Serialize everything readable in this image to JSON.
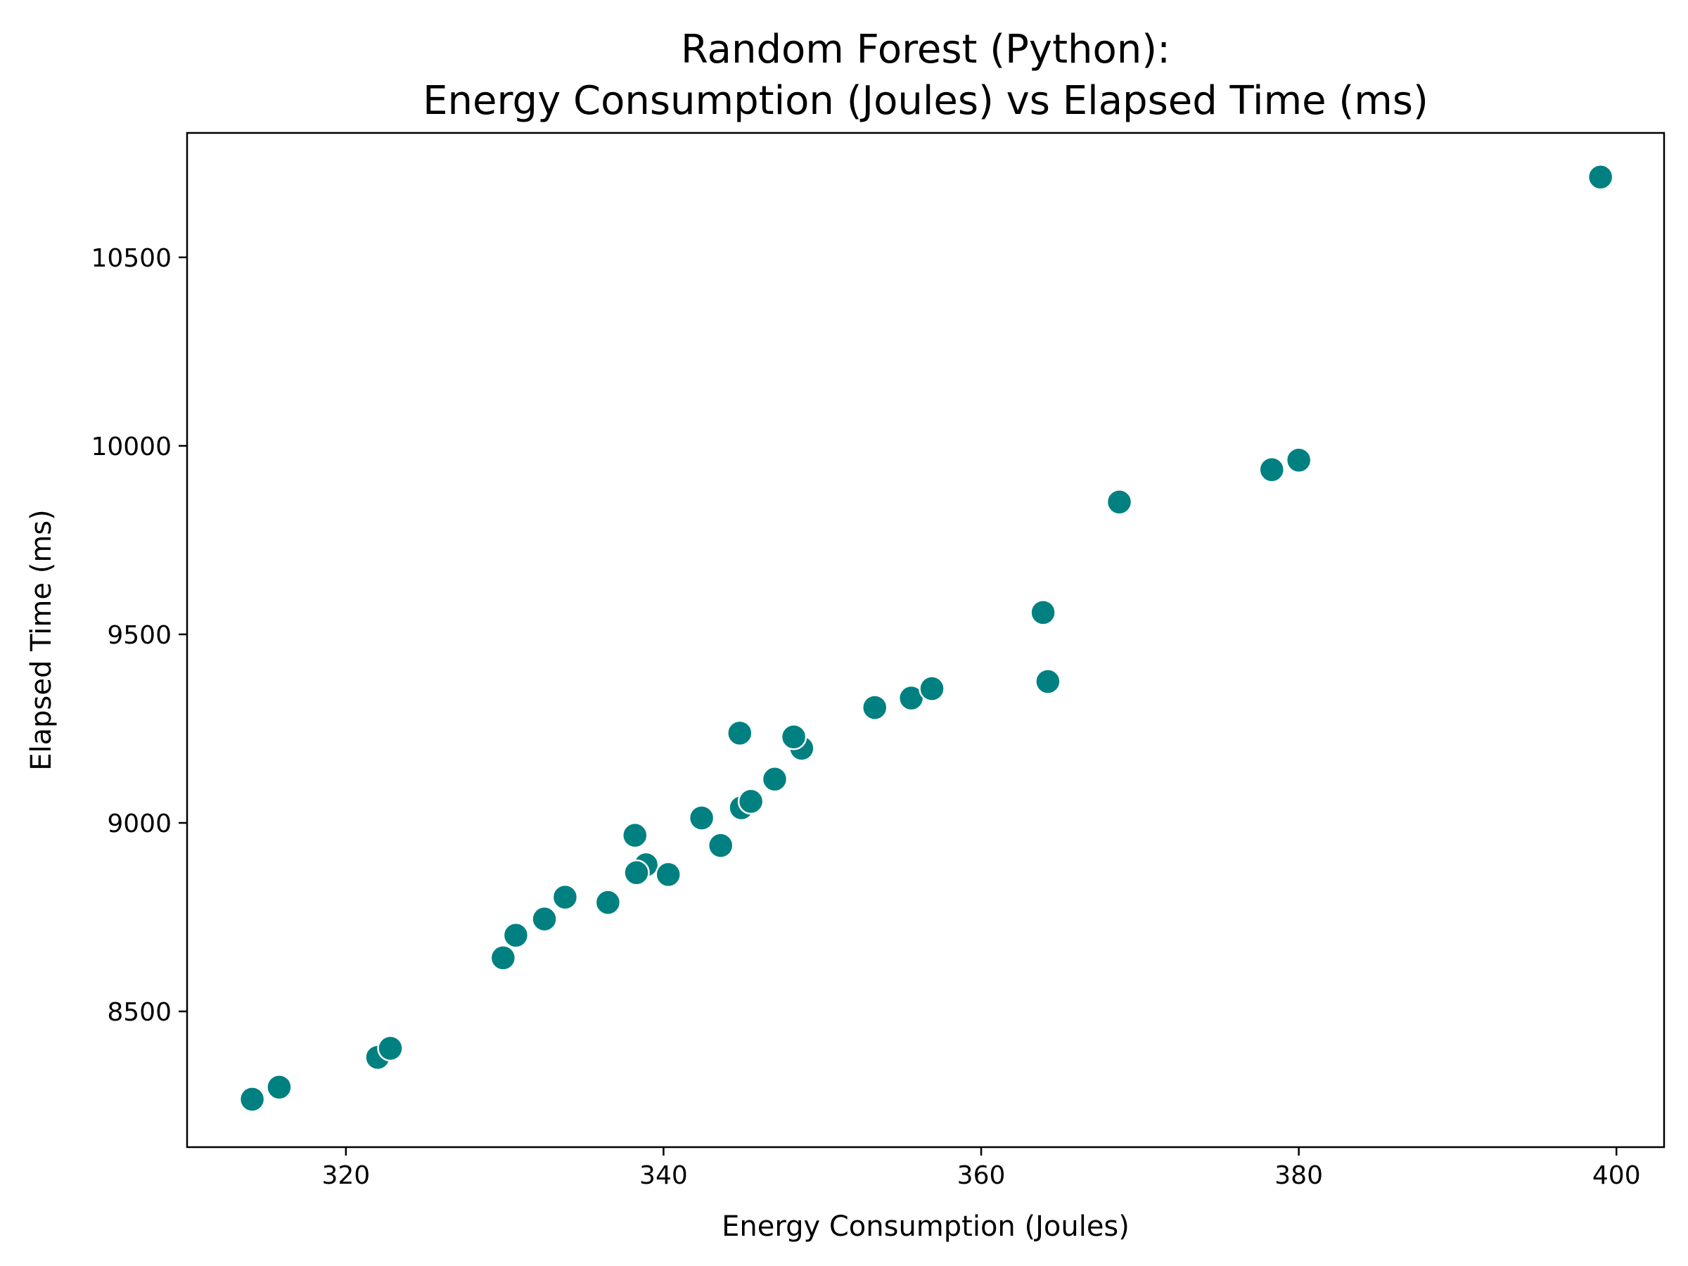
{
  "chart_data": {
    "type": "scatter",
    "title": [
      "Random Forest (Python):",
      "Energy Consumption (Joules) vs Elapsed Time (ms)"
    ],
    "xlabel": "Energy Consumption (Joules)",
    "ylabel": "Elapsed Time (ms)",
    "xlim": [
      310,
      403
    ],
    "ylim": [
      8140,
      10830
    ],
    "xticks": [
      320,
      340,
      360,
      380,
      400
    ],
    "yticks": [
      8500,
      9000,
      9500,
      10000,
      10500
    ],
    "grid": false,
    "legend": "none",
    "marker_color": "#008080",
    "marker_edge_color": "#ffffff",
    "points": [
      {
        "x": 314.1,
        "y": 8267
      },
      {
        "x": 315.8,
        "y": 8299
      },
      {
        "x": 322.0,
        "y": 8378
      },
      {
        "x": 322.8,
        "y": 8402
      },
      {
        "x": 329.9,
        "y": 8642
      },
      {
        "x": 330.7,
        "y": 8702
      },
      {
        "x": 332.5,
        "y": 8745
      },
      {
        "x": 333.8,
        "y": 8803
      },
      {
        "x": 336.5,
        "y": 8789
      },
      {
        "x": 338.2,
        "y": 8967
      },
      {
        "x": 338.9,
        "y": 8889
      },
      {
        "x": 338.3,
        "y": 8868
      },
      {
        "x": 340.3,
        "y": 8863
      },
      {
        "x": 342.4,
        "y": 9013
      },
      {
        "x": 343.6,
        "y": 8940
      },
      {
        "x": 344.8,
        "y": 9238
      },
      {
        "x": 344.9,
        "y": 9040
      },
      {
        "x": 345.5,
        "y": 9057
      },
      {
        "x": 347.0,
        "y": 9116
      },
      {
        "x": 348.7,
        "y": 9198
      },
      {
        "x": 348.2,
        "y": 9228
      },
      {
        "x": 353.3,
        "y": 9306
      },
      {
        "x": 355.6,
        "y": 9331
      },
      {
        "x": 356.9,
        "y": 9356
      },
      {
        "x": 363.9,
        "y": 9558
      },
      {
        "x": 364.2,
        "y": 9375
      },
      {
        "x": 368.7,
        "y": 9851
      },
      {
        "x": 378.3,
        "y": 9937
      },
      {
        "x": 380.0,
        "y": 9962
      },
      {
        "x": 399.0,
        "y": 10713
      }
    ]
  }
}
